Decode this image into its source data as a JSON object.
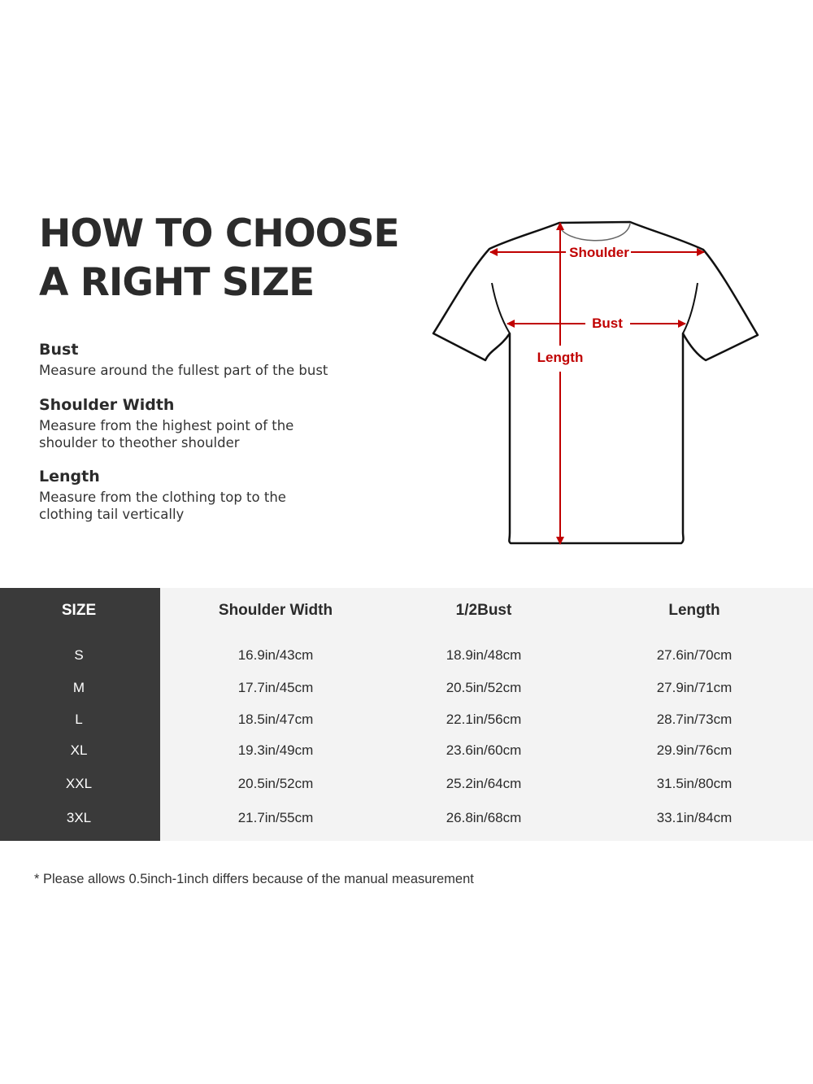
{
  "title": {
    "line1": "HOW TO CHOOSE",
    "line2": "A RIGHT SIZE"
  },
  "definitions": [
    {
      "term": "Bust",
      "description": "Measure around the fullest part of the bust"
    },
    {
      "term": "Shoulder Width",
      "description": "Measure from the highest point of the shoulder to theother shoulder"
    },
    {
      "term": "Length",
      "description": "Measure from the clothing top to the clothing tail vertically"
    }
  ],
  "diagram": {
    "labels": {
      "shoulder": "Shoulder",
      "bust": "Bust",
      "length": "Length"
    },
    "colors": {
      "measure": "#c00000",
      "outline": "#111111"
    }
  },
  "table": {
    "headers": [
      "SIZE",
      "Shoulder Width",
      "1/2Bust",
      "Length"
    ],
    "rows": [
      [
        "S",
        "16.9in/43cm",
        "18.9in/48cm",
        "27.6in/70cm"
      ],
      [
        "M",
        "17.7in/45cm",
        "20.5in/52cm",
        "27.9in/71cm"
      ],
      [
        "L",
        "18.5in/47cm",
        "22.1in/56cm",
        "28.7in/73cm"
      ],
      [
        "XL",
        "19.3in/49cm",
        "23.6in/60cm",
        "29.9in/76cm"
      ],
      [
        "XXL",
        "20.5in/52cm",
        "25.2in/64cm",
        "31.5in/80cm"
      ],
      [
        "3XL",
        "21.7in/55cm",
        "26.8in/68cm",
        "33.1in/84cm"
      ]
    ],
    "colors": {
      "size_column": "#3a3a3a",
      "background": "#f3f3f3"
    }
  },
  "note": "* Please allows 0.5inch-1inch differs because of the  manual measurement"
}
